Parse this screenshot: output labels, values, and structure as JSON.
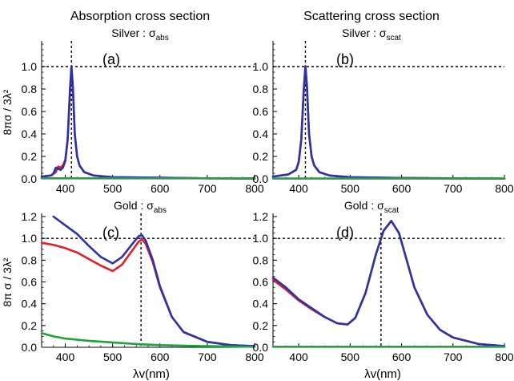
{
  "figure": {
    "col_titles": [
      "Absorption cross section",
      "Scattering cross section"
    ],
    "ylabel_top": "8πσ / 3λ²",
    "ylabel_bottom": "8π σ / 3λ²",
    "xlabel": "λv(nm)"
  },
  "colors": {
    "series_dark_blue": "#2a35a3",
    "series_red": "#e21e2b",
    "series_green": "#1fa33a",
    "reference_line": "#000000"
  },
  "chart_data": [
    {
      "type": "line",
      "panel_label": "(a)",
      "title": "Silver : σ",
      "title_sub": "abs",
      "xlim": [
        350,
        800
      ],
      "ylim": [
        0,
        1.2
      ],
      "xticks": [
        400,
        500,
        600,
        700,
        800
      ],
      "yticks": [
        0.0,
        0.2,
        0.4,
        0.6,
        0.8,
        1.0
      ],
      "vline_x": 413,
      "hline_y": 1.0,
      "series": [
        {
          "color": "#e21e2b",
          "x": [
            350,
            370,
            380,
            385,
            390,
            395,
            400,
            405,
            410,
            413,
            416,
            420,
            425,
            430,
            440,
            460,
            500,
            600,
            700,
            800
          ],
          "y": [
            0.02,
            0.03,
            0.06,
            0.11,
            0.1,
            0.12,
            0.17,
            0.35,
            0.8,
            1.0,
            0.82,
            0.4,
            0.2,
            0.12,
            0.06,
            0.03,
            0.015,
            0.01,
            0.005,
            0.003
          ]
        },
        {
          "color": "#2a35a3",
          "x": [
            350,
            370,
            375,
            380,
            385,
            390,
            395,
            400,
            405,
            410,
            413,
            416,
            420,
            425,
            430,
            440,
            460,
            500,
            600,
            700,
            800
          ],
          "y": [
            0.02,
            0.03,
            0.05,
            0.1,
            0.09,
            0.08,
            0.1,
            0.16,
            0.35,
            0.8,
            1.0,
            0.82,
            0.4,
            0.2,
            0.12,
            0.06,
            0.03,
            0.015,
            0.01,
            0.005,
            0.003
          ]
        },
        {
          "color": "#1fa33a",
          "x": [
            350,
            800
          ],
          "y": [
            0.005,
            0.005
          ]
        }
      ]
    },
    {
      "type": "line",
      "panel_label": "(b)",
      "title": "Silver : σ",
      "title_sub": "scat",
      "xlim": [
        350,
        800
      ],
      "ylim": [
        0,
        1.2
      ],
      "xticks": [
        400,
        500,
        600,
        700,
        800
      ],
      "yticks": [
        0.0,
        0.2,
        0.4,
        0.6,
        0.8,
        1.0
      ],
      "vline_x": 413,
      "hline_y": 1.0,
      "series": [
        {
          "color": "#e21e2b",
          "x": [
            350,
            380,
            395,
            400,
            405,
            410,
            413,
            416,
            420,
            425,
            430,
            440,
            460,
            500,
            600,
            700,
            800
          ],
          "y": [
            0.02,
            0.04,
            0.08,
            0.15,
            0.35,
            0.8,
            1.0,
            0.82,
            0.4,
            0.2,
            0.12,
            0.06,
            0.03,
            0.015,
            0.008,
            0.004,
            0.002
          ]
        },
        {
          "color": "#2a35a3",
          "x": [
            350,
            380,
            395,
            400,
            405,
            410,
            413,
            416,
            420,
            425,
            430,
            440,
            460,
            500,
            600,
            700,
            800
          ],
          "y": [
            0.02,
            0.04,
            0.08,
            0.15,
            0.35,
            0.8,
            1.0,
            0.82,
            0.4,
            0.2,
            0.12,
            0.06,
            0.03,
            0.015,
            0.008,
            0.004,
            0.002
          ]
        },
        {
          "color": "#1fa33a",
          "x": [
            350,
            800
          ],
          "y": [
            0.003,
            0.003
          ]
        }
      ]
    },
    {
      "type": "line",
      "panel_label": "(c)",
      "title": "Gold : σ",
      "title_sub": "abs",
      "xlim": [
        350,
        800
      ],
      "ylim": [
        0,
        1.2
      ],
      "xticks": [
        400,
        500,
        600,
        700,
        800
      ],
      "yticks": [
        0.0,
        0.2,
        0.4,
        0.6,
        0.8,
        1.0,
        1.2
      ],
      "vline_x": 560,
      "hline_y": 1.0,
      "series": [
        {
          "color": "#e21e2b",
          "x": [
            350,
            375,
            400,
            425,
            450,
            475,
            500,
            520,
            540,
            555,
            562,
            570,
            585,
            600,
            625,
            650,
            700,
            750,
            800
          ],
          "y": [
            0.96,
            0.94,
            0.91,
            0.87,
            0.81,
            0.75,
            0.7,
            0.76,
            0.88,
            0.97,
            0.99,
            0.95,
            0.78,
            0.55,
            0.28,
            0.14,
            0.05,
            0.02,
            0.01
          ]
        },
        {
          "color": "#2a35a3",
          "x": [
            375,
            400,
            425,
            450,
            475,
            500,
            520,
            540,
            555,
            562,
            570,
            585,
            600,
            625,
            650,
            700,
            750,
            800
          ],
          "y": [
            1.2,
            1.12,
            1.04,
            0.93,
            0.83,
            0.77,
            0.83,
            0.94,
            1.02,
            1.03,
            0.98,
            0.8,
            0.56,
            0.28,
            0.14,
            0.05,
            0.02,
            0.01
          ]
        },
        {
          "color": "#1fa33a",
          "x": [
            350,
            375,
            400,
            450,
            500,
            550,
            600,
            700,
            800
          ],
          "y": [
            0.13,
            0.1,
            0.08,
            0.06,
            0.045,
            0.03,
            0.02,
            0.01,
            0.005
          ]
        }
      ]
    },
    {
      "type": "line",
      "panel_label": "(d)",
      "title": "Gold : σ",
      "title_sub": "scat",
      "xlim": [
        350,
        800
      ],
      "ylim": [
        0,
        1.2
      ],
      "xticks": [
        400,
        500,
        600,
        700,
        800
      ],
      "yticks": [
        0.0,
        0.2,
        0.4,
        0.6,
        0.8,
        1.0,
        1.2
      ],
      "vline_x": 560,
      "hline_y": 1.0,
      "series": [
        {
          "color": "#e21e2b",
          "x": [
            350,
            375,
            400,
            425,
            450,
            475,
            495,
            510,
            530,
            550,
            565,
            580,
            595,
            610,
            625,
            650,
            675,
            700,
            750,
            800
          ],
          "y": [
            0.62,
            0.53,
            0.43,
            0.35,
            0.28,
            0.22,
            0.21,
            0.27,
            0.5,
            0.85,
            1.07,
            1.16,
            1.05,
            0.8,
            0.55,
            0.3,
            0.16,
            0.09,
            0.03,
            0.01
          ]
        },
        {
          "color": "#2a35a3",
          "x": [
            350,
            375,
            400,
            425,
            450,
            475,
            495,
            510,
            530,
            550,
            565,
            580,
            595,
            610,
            625,
            650,
            675,
            700,
            750,
            800
          ],
          "y": [
            0.64,
            0.55,
            0.44,
            0.36,
            0.28,
            0.22,
            0.21,
            0.27,
            0.5,
            0.85,
            1.07,
            1.16,
            1.05,
            0.8,
            0.55,
            0.3,
            0.16,
            0.09,
            0.03,
            0.01
          ]
        },
        {
          "color": "#1fa33a",
          "x": [
            350,
            800
          ],
          "y": [
            0.005,
            0.005
          ]
        }
      ]
    }
  ]
}
